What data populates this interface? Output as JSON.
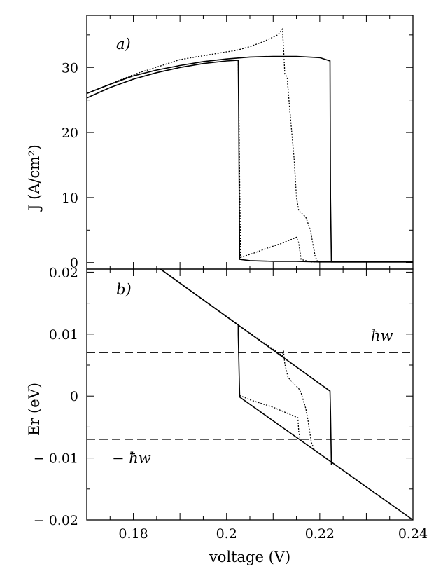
{
  "chart_data": [
    {
      "panel": "a)",
      "type": "line",
      "ylabel": "J  (A/cm²)",
      "xlim": [
        0.17,
        0.24
      ],
      "ylim": [
        -1,
        38
      ],
      "yticks": [
        0,
        10,
        20,
        30
      ],
      "ytick_labels": [
        "0",
        "10",
        "20",
        "30"
      ],
      "grid": false,
      "series": [
        {
          "style": "solid",
          "points": [
            [
              0.17,
              25.3
            ],
            [
              0.175,
              26.9
            ],
            [
              0.18,
              28.2
            ],
            [
              0.185,
              29.2
            ],
            [
              0.19,
              30.0
            ],
            [
              0.195,
              30.6
            ],
            [
              0.2,
              31.0
            ],
            [
              0.2025,
              31.1
            ],
            [
              0.2026,
              24.0
            ],
            [
              0.2028,
              0.5
            ],
            [
              0.205,
              0.3
            ],
            [
              0.21,
              0.2
            ],
            [
              0.215,
              0.2
            ],
            [
              0.22,
              0.1
            ],
            [
              0.224,
              0.1
            ],
            [
              0.24,
              0.1
            ]
          ]
        },
        {
          "style": "solid",
          "points": [
            [
              0.17,
              26.0
            ],
            [
              0.175,
              27.4
            ],
            [
              0.18,
              28.7
            ],
            [
              0.185,
              29.6
            ],
            [
              0.19,
              30.3
            ],
            [
              0.195,
              30.9
            ],
            [
              0.2,
              31.3
            ],
            [
              0.205,
              31.6
            ],
            [
              0.21,
              31.7
            ],
            [
              0.215,
              31.7
            ],
            [
              0.22,
              31.5
            ],
            [
              0.2222,
              31.0
            ],
            [
              0.2223,
              10.0
            ],
            [
              0.2225,
              0.1
            ],
            [
              0.23,
              0.1
            ],
            [
              0.24,
              0.1
            ]
          ]
        },
        {
          "style": "dotted",
          "points": [
            [
              0.17,
              26.0
            ],
            [
              0.18,
              28.9
            ],
            [
              0.19,
              31.2
            ],
            [
              0.2,
              32.4
            ],
            [
              0.202,
              32.6
            ],
            [
              0.205,
              33.2
            ],
            [
              0.208,
              34.0
            ],
            [
              0.211,
              35.0
            ],
            [
              0.212,
              35.9
            ],
            [
              0.2123,
              32.0
            ],
            [
              0.2125,
              29.0
            ],
            [
              0.213,
              28.5
            ],
            [
              0.2135,
              24.0
            ],
            [
              0.214,
              20.0
            ],
            [
              0.2145,
              16.0
            ],
            [
              0.215,
              10.0
            ],
            [
              0.2155,
              8.0
            ],
            [
              0.217,
              7.0
            ],
            [
              0.218,
              5.0
            ],
            [
              0.219,
              1.0
            ],
            [
              0.2195,
              0.2
            ],
            [
              0.224,
              0.1
            ],
            [
              0.24,
              0.1
            ]
          ]
        },
        {
          "style": "dotted",
          "points": [
            [
              0.2025,
              31.0
            ],
            [
              0.2027,
              20.0
            ],
            [
              0.203,
              0.8
            ],
            [
              0.206,
              1.5
            ],
            [
              0.209,
              2.3
            ],
            [
              0.212,
              3.0
            ],
            [
              0.215,
              3.9
            ],
            [
              0.2155,
              3.0
            ],
            [
              0.216,
              0.5
            ],
            [
              0.218,
              0.1
            ],
            [
              0.24,
              0.1
            ]
          ]
        }
      ],
      "annotations": []
    },
    {
      "panel": "b)",
      "type": "line",
      "xlabel": "voltage  (V)",
      "ylabel": "Er  (eV)",
      "xlim": [
        0.17,
        0.24
      ],
      "ylim": [
        -0.02,
        0.0205
      ],
      "xticks": [
        0.18,
        0.2,
        0.22,
        0.24
      ],
      "xtick_labels": [
        "0.18",
        "0.2",
        "0.22",
        "0.24"
      ],
      "yticks": [
        -0.02,
        -0.01,
        0,
        0.01,
        0.02
      ],
      "ytick_labels": [
        "− 0.02",
        "− 0.01",
        "0",
        "0.01",
        "0.02"
      ],
      "grid": false,
      "series": [
        {
          "style": "solid",
          "points": [
            [
              0.1858,
              0.0205
            ],
            [
              0.2025,
              0.0115
            ],
            [
              0.2025,
              0.0115
            ],
            [
              0.2025,
              0.01
            ],
            [
              0.2028,
              0.0001
            ],
            [
              0.2029,
              -0.0002
            ],
            [
              0.24,
              -0.02
            ]
          ]
        },
        {
          "style": "solid",
          "points": [
            [
              0.1858,
              0.0205
            ],
            [
              0.2222,
              0.0008
            ],
            [
              0.2223,
              -0.0025
            ],
            [
              0.2225,
              -0.0111
            ]
          ]
        },
        {
          "style": "dotted",
          "points": [
            [
              0.2025,
              0.0115
            ],
            [
              0.212,
              0.0065
            ],
            [
              0.2122,
              0.0075
            ],
            [
              0.2125,
              0.0052
            ],
            [
              0.2132,
              0.003
            ],
            [
              0.2142,
              0.0022
            ],
            [
              0.2155,
              0.0012
            ],
            [
              0.216,
              0.0005
            ],
            [
              0.217,
              -0.002
            ],
            [
              0.2175,
              -0.004
            ],
            [
              0.2182,
              -0.0075
            ],
            [
              0.219,
              -0.0089
            ]
          ]
        },
        {
          "style": "dotted",
          "points": [
            [
              0.2028,
              0.0001
            ],
            [
              0.205,
              -0.0006
            ],
            [
              0.21,
              -0.0018
            ],
            [
              0.2153,
              -0.0035
            ],
            [
              0.2155,
              -0.0058
            ],
            [
              0.2158,
              -0.007
            ]
          ]
        }
      ],
      "reference_lines": [
        {
          "style": "dashed",
          "y": 0.007,
          "label": "ħw"
        },
        {
          "style": "dashed",
          "y": -0.007,
          "label": "− ħw"
        }
      ]
    }
  ]
}
